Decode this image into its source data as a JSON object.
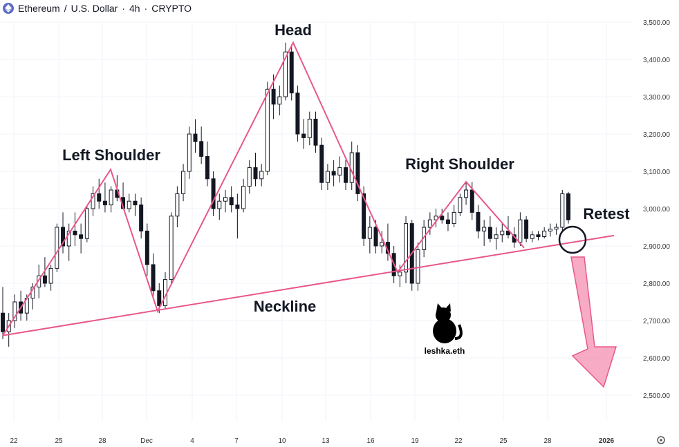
{
  "header": {
    "symbol": "Ethereum",
    "sep1": "/",
    "quote": "U.S. Dollar",
    "sep2": "·",
    "interval": "4h",
    "sep3": "·",
    "exchange": "CRYPTO",
    "logo_icon": "ethereum-logo-icon"
  },
  "annotations": {
    "head": "Head",
    "left_shoulder": "Left Shoulder",
    "right_shoulder": "Right Shoulder",
    "neckline": "Neckline",
    "retest": "Retest"
  },
  "watermark": {
    "text": "leshka.eth",
    "icon": "cat-silhouette-icon"
  },
  "settings_icon": "gear-icon",
  "colors": {
    "pattern": "#e8578a",
    "arrow": "#f48fb1",
    "candle": "#131722",
    "grid": "#f0f3fa"
  },
  "chart_data": {
    "type": "candlestick",
    "y_axis_ticks": [
      "3,500.00",
      "3,400.00",
      "3,300.00",
      "3,200.00",
      "3,100.00",
      "3,000.00",
      "2,900.00",
      "2,800.00",
      "2,700.00",
      "2,600.00",
      "2,500.00"
    ],
    "y_values": [
      3500,
      3400,
      3300,
      3200,
      3100,
      3000,
      2900,
      2800,
      2700,
      2600,
      2500
    ],
    "ylim": [
      2480,
      3540
    ],
    "x_axis_ticks": [
      "22",
      "25",
      "28",
      "Dec",
      "4",
      "7",
      "10",
      "13",
      "16",
      "19",
      "22",
      "25",
      "28",
      "2026"
    ],
    "pattern": [
      {
        "date": "Nov 21",
        "price": 2660
      },
      {
        "date": "Nov 29",
        "price": 3105
      },
      {
        "date": "Dec 2",
        "price": 2725
      },
      {
        "date": "Dec 11",
        "price": 3445
      },
      {
        "date": "Dec 18",
        "price": 2830
      },
      {
        "date": "Dec 22",
        "price": 3072
      },
      {
        "date": "Dec 26",
        "price": 2895
      }
    ],
    "neckline": [
      {
        "date": "Nov 21",
        "price": 2660
      },
      {
        "date": "Dec 31",
        "price": 2928
      }
    ],
    "candles": [
      {
        "o": 2720,
        "h": 2790,
        "l": 2650,
        "c": 2670
      },
      {
        "o": 2670,
        "h": 2720,
        "l": 2630,
        "c": 2700
      },
      {
        "o": 2700,
        "h": 2770,
        "l": 2680,
        "c": 2750
      },
      {
        "o": 2750,
        "h": 2780,
        "l": 2700,
        "c": 2720
      },
      {
        "o": 2720,
        "h": 2770,
        "l": 2700,
        "c": 2760
      },
      {
        "o": 2760,
        "h": 2800,
        "l": 2730,
        "c": 2790
      },
      {
        "o": 2790,
        "h": 2850,
        "l": 2760,
        "c": 2820
      },
      {
        "o": 2820,
        "h": 2870,
        "l": 2790,
        "c": 2800
      },
      {
        "o": 2800,
        "h": 2850,
        "l": 2780,
        "c": 2840
      },
      {
        "o": 2840,
        "h": 2960,
        "l": 2830,
        "c": 2950
      },
      {
        "o": 2950,
        "h": 2990,
        "l": 2880,
        "c": 2900
      },
      {
        "o": 2900,
        "h": 2960,
        "l": 2860,
        "c": 2940
      },
      {
        "o": 2940,
        "h": 2990,
        "l": 2900,
        "c": 2930
      },
      {
        "o": 2930,
        "h": 2960,
        "l": 2880,
        "c": 2920
      },
      {
        "o": 2920,
        "h": 3010,
        "l": 2910,
        "c": 3000
      },
      {
        "o": 3000,
        "h": 3060,
        "l": 2980,
        "c": 3040
      },
      {
        "o": 3040,
        "h": 3080,
        "l": 3000,
        "c": 3020
      },
      {
        "o": 3020,
        "h": 3070,
        "l": 2990,
        "c": 3010
      },
      {
        "o": 3010,
        "h": 3060,
        "l": 2990,
        "c": 3050
      },
      {
        "o": 3050,
        "h": 3090,
        "l": 3020,
        "c": 3030
      },
      {
        "o": 3030,
        "h": 3070,
        "l": 3000,
        "c": 3000
      },
      {
        "o": 3000,
        "h": 3040,
        "l": 2990,
        "c": 3020
      },
      {
        "o": 3020,
        "h": 3040,
        "l": 2980,
        "c": 3010
      },
      {
        "o": 3010,
        "h": 3030,
        "l": 2920,
        "c": 2940
      },
      {
        "o": 2940,
        "h": 2960,
        "l": 2820,
        "c": 2850
      },
      {
        "o": 2850,
        "h": 2880,
        "l": 2760,
        "c": 2780
      },
      {
        "o": 2780,
        "h": 2800,
        "l": 2720,
        "c": 2740
      },
      {
        "o": 2740,
        "h": 2830,
        "l": 2730,
        "c": 2810
      },
      {
        "o": 2810,
        "h": 2990,
        "l": 2800,
        "c": 2980
      },
      {
        "o": 2980,
        "h": 3060,
        "l": 2950,
        "c": 3040
      },
      {
        "o": 3040,
        "h": 3120,
        "l": 3020,
        "c": 3100
      },
      {
        "o": 3100,
        "h": 3220,
        "l": 3080,
        "c": 3200
      },
      {
        "o": 3200,
        "h": 3240,
        "l": 3150,
        "c": 3180
      },
      {
        "o": 3180,
        "h": 3220,
        "l": 3120,
        "c": 3140
      },
      {
        "o": 3140,
        "h": 3180,
        "l": 3060,
        "c": 3080
      },
      {
        "o": 3080,
        "h": 3100,
        "l": 2980,
        "c": 3000
      },
      {
        "o": 3000,
        "h": 3040,
        "l": 2970,
        "c": 3020
      },
      {
        "o": 3020,
        "h": 3050,
        "l": 2990,
        "c": 3030
      },
      {
        "o": 3030,
        "h": 3060,
        "l": 2990,
        "c": 3010
      },
      {
        "o": 3010,
        "h": 3040,
        "l": 2920,
        "c": 3000
      },
      {
        "o": 3000,
        "h": 3080,
        "l": 2990,
        "c": 3060
      },
      {
        "o": 3060,
        "h": 3130,
        "l": 3040,
        "c": 3110
      },
      {
        "o": 3110,
        "h": 3150,
        "l": 3060,
        "c": 3080
      },
      {
        "o": 3080,
        "h": 3120,
        "l": 3060,
        "c": 3100
      },
      {
        "o": 3100,
        "h": 3340,
        "l": 3090,
        "c": 3320
      },
      {
        "o": 3320,
        "h": 3360,
        "l": 3240,
        "c": 3280
      },
      {
        "o": 3280,
        "h": 3330,
        "l": 3250,
        "c": 3300
      },
      {
        "o": 3300,
        "h": 3445,
        "l": 3290,
        "c": 3420
      },
      {
        "o": 3420,
        "h": 3440,
        "l": 3290,
        "c": 3310
      },
      {
        "o": 3310,
        "h": 3330,
        "l": 3180,
        "c": 3200
      },
      {
        "o": 3200,
        "h": 3240,
        "l": 3160,
        "c": 3190
      },
      {
        "o": 3190,
        "h": 3260,
        "l": 3170,
        "c": 3240
      },
      {
        "o": 3240,
        "h": 3260,
        "l": 3150,
        "c": 3170
      },
      {
        "o": 3170,
        "h": 3190,
        "l": 3050,
        "c": 3070
      },
      {
        "o": 3070,
        "h": 3120,
        "l": 3050,
        "c": 3100
      },
      {
        "o": 3100,
        "h": 3130,
        "l": 3060,
        "c": 3090
      },
      {
        "o": 3090,
        "h": 3140,
        "l": 3070,
        "c": 3110
      },
      {
        "o": 3110,
        "h": 3130,
        "l": 3050,
        "c": 3070
      },
      {
        "o": 3070,
        "h": 3180,
        "l": 3050,
        "c": 3150
      },
      {
        "o": 3150,
        "h": 3170,
        "l": 3020,
        "c": 3040
      },
      {
        "o": 3040,
        "h": 3060,
        "l": 2900,
        "c": 2920
      },
      {
        "o": 2920,
        "h": 2980,
        "l": 2880,
        "c": 2950
      },
      {
        "o": 2950,
        "h": 2970,
        "l": 2880,
        "c": 2900
      },
      {
        "o": 2900,
        "h": 2940,
        "l": 2880,
        "c": 2910
      },
      {
        "o": 2910,
        "h": 2960,
        "l": 2860,
        "c": 2880
      },
      {
        "o": 2880,
        "h": 2900,
        "l": 2800,
        "c": 2820
      },
      {
        "o": 2820,
        "h": 2850,
        "l": 2790,
        "c": 2830
      },
      {
        "o": 2830,
        "h": 2980,
        "l": 2800,
        "c": 2960
      },
      {
        "o": 2960,
        "h": 2970,
        "l": 2780,
        "c": 2800
      },
      {
        "o": 2800,
        "h": 2910,
        "l": 2780,
        "c": 2890
      },
      {
        "o": 2890,
        "h": 2970,
        "l": 2870,
        "c": 2950
      },
      {
        "o": 2950,
        "h": 2990,
        "l": 2930,
        "c": 2970
      },
      {
        "o": 2970,
        "h": 3000,
        "l": 2950,
        "c": 2980
      },
      {
        "o": 2980,
        "h": 3000,
        "l": 2960,
        "c": 2970
      },
      {
        "o": 2970,
        "h": 2990,
        "l": 2940,
        "c": 2960
      },
      {
        "o": 2960,
        "h": 3010,
        "l": 2950,
        "c": 2990
      },
      {
        "o": 2990,
        "h": 3040,
        "l": 2980,
        "c": 3030
      },
      {
        "o": 3030,
        "h": 3070,
        "l": 3010,
        "c": 3050
      },
      {
        "o": 3050,
        "h": 3072,
        "l": 2970,
        "c": 2990
      },
      {
        "o": 2990,
        "h": 3010,
        "l": 2920,
        "c": 2940
      },
      {
        "o": 2940,
        "h": 2970,
        "l": 2900,
        "c": 2950
      },
      {
        "o": 2950,
        "h": 2980,
        "l": 2910,
        "c": 2920
      },
      {
        "o": 2920,
        "h": 2950,
        "l": 2890,
        "c": 2930
      },
      {
        "o": 2930,
        "h": 2960,
        "l": 2910,
        "c": 2940
      },
      {
        "o": 2940,
        "h": 2980,
        "l": 2920,
        "c": 2930
      },
      {
        "o": 2930,
        "h": 2950,
        "l": 2895,
        "c": 2910
      },
      {
        "o": 2910,
        "h": 2990,
        "l": 2900,
        "c": 2970
      },
      {
        "o": 2970,
        "h": 2980,
        "l": 2910,
        "c": 2920
      },
      {
        "o": 2920,
        "h": 2940,
        "l": 2910,
        "c": 2930
      },
      {
        "o": 2930,
        "h": 2940,
        "l": 2915,
        "c": 2925
      },
      {
        "o": 2925,
        "h": 2950,
        "l": 2920,
        "c": 2940
      },
      {
        "o": 2940,
        "h": 2960,
        "l": 2925,
        "c": 2945
      },
      {
        "o": 2945,
        "h": 2960,
        "l": 2930,
        "c": 2950
      },
      {
        "o": 2950,
        "h": 3050,
        "l": 2940,
        "c": 3040
      },
      {
        "o": 3040,
        "h": 3045,
        "l": 2960,
        "c": 2970
      }
    ]
  }
}
